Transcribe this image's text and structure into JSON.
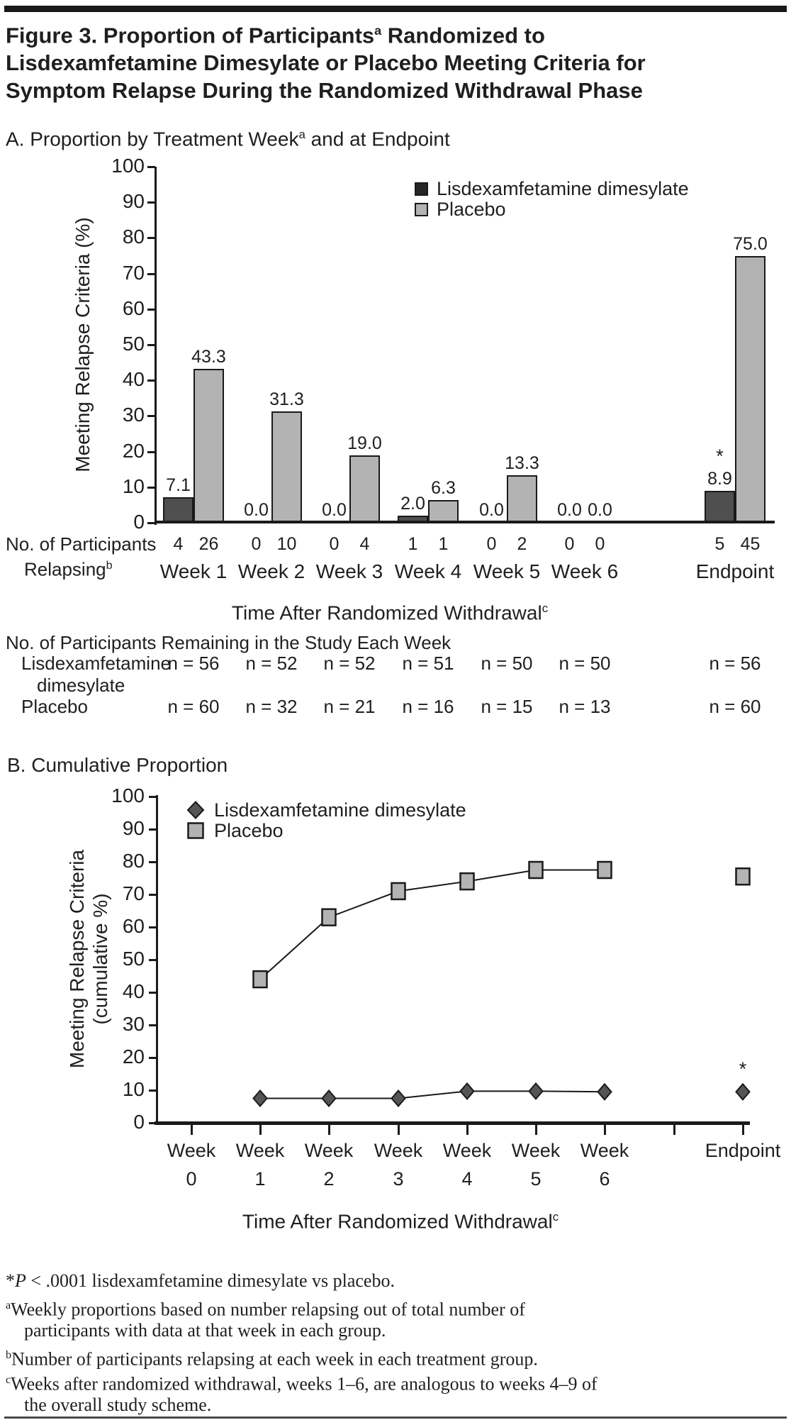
{
  "figure": {
    "title": {
      "line1_pre": "Figure 3. Proportion of Participants",
      "line1_sup": "a",
      "line1_post": " Randomized to",
      "line2": "Lisdexamfetamine Dimesylate or Placebo Meeting Criteria for",
      "line3": "Symptom Relapse During the Randomized Withdrawal Phase"
    }
  },
  "panel_a": {
    "heading_pre": "A. Proportion by Treatment Week",
    "heading_sup": "a",
    "heading_post": " and at Endpoint",
    "star": "*",
    "participants_relapsing": {
      "label_line1": "No. of Participants",
      "label_line2": "Relapsing",
      "label_sup": "b",
      "lisdexamfetamine": [
        4,
        0,
        0,
        1,
        0,
        0,
        5
      ],
      "placebo": [
        26,
        10,
        4,
        1,
        2,
        0,
        45
      ]
    },
    "participants_remaining": {
      "header": "No. of Participants Remaining in the Study Each Week",
      "rows": [
        {
          "label_line1": "Lisdexamfetamine",
          "label_line2": "dimesylate",
          "values": [
            "n = 56",
            "n = 52",
            "n = 52",
            "n = 51",
            "n = 50",
            "n = 50",
            "n = 56"
          ]
        },
        {
          "label_line1": "Placebo",
          "label_line2": "",
          "values": [
            "n = 60",
            "n = 32",
            "n = 21",
            "n = 16",
            "n = 15",
            "n = 13",
            "n = 60"
          ]
        }
      ]
    }
  },
  "panel_b": {
    "heading": "B. Cumulative Proportion",
    "star": "*"
  },
  "chart_data": [
    {
      "type": "bar",
      "panel": "A",
      "title": "A. Proportion by Treatment Week and at Endpoint",
      "categories": [
        "Week 1",
        "Week 2",
        "Week 3",
        "Week 4",
        "Week 5",
        "Week 6",
        "Endpoint"
      ],
      "series": [
        {
          "name": "Lisdexamfetamine dimesylate",
          "color": "#4f4f4f",
          "legend_color": "#262626",
          "values": [
            7.1,
            0.0,
            0.0,
            2.0,
            0.0,
            0.0,
            8.9
          ]
        },
        {
          "name": "Placebo",
          "color": "#b3b3b3",
          "legend_color": "#b3b3b3",
          "values": [
            43.3,
            31.3,
            19.0,
            6.3,
            13.3,
            0.0,
            75.0
          ]
        }
      ],
      "ylabel": "Meeting Relapse Criteria (%)",
      "xlabel_pre": "Time After Randomized Withdrawal",
      "xlabel_sup": "c",
      "ylim": [
        0,
        100
      ],
      "ytick_step": 10,
      "legend_position": "upper-center-right",
      "annotation": {
        "text": "*",
        "series": 0,
        "category": "Endpoint"
      }
    },
    {
      "type": "line",
      "panel": "B",
      "title": "B. Cumulative Proportion",
      "categories": [
        "Week 0",
        "Week 1",
        "Week 2",
        "Week 3",
        "Week 4",
        "Week 5",
        "Week 6",
        "",
        "Endpoint"
      ],
      "series": [
        {
          "name": "Lisdexamfetamine dimesylate",
          "marker": "diamond",
          "color": "#555555",
          "week_values": [
            7.5,
            7.5,
            7.5,
            9.7,
            9.7,
            9.5
          ],
          "endpoint_value": 9.5
        },
        {
          "name": "Placebo",
          "marker": "square",
          "color": "#b3b3b3",
          "week_values": [
            44,
            63,
            71,
            74,
            77.5,
            77.5
          ],
          "endpoint_value": 75.5
        }
      ],
      "ylabel_line1": "Meeting Relapse Criteria",
      "ylabel_line2": "(cumulative %)",
      "xlabel_pre": "Time After Randomized Withdrawal",
      "xlabel_sup": "c",
      "ylim": [
        0,
        100
      ],
      "ytick_step": 10,
      "legend_position": "upper-left",
      "annotation": {
        "text": "*",
        "series": 0,
        "category": "Endpoint"
      }
    }
  ],
  "footnotes": {
    "lines": [
      {
        "star": "*",
        "italic": "P",
        "text": " < .0001 lisdexamfetamine dimesylate vs placebo."
      },
      {
        "sup": "a",
        "text": "Weekly proportions based on number relapsing out of total number of"
      },
      {
        "indent": true,
        "text": "participants with data at that week in each group."
      },
      {
        "sup": "b",
        "text": "Number of participants relapsing at each week in each treatment group."
      },
      {
        "sup": "c",
        "text": "Weeks after randomized withdrawal, weeks 1–6, are analogous to weeks 4–9 of"
      },
      {
        "indent": true,
        "text": "the overall study scheme."
      }
    ]
  },
  "colors": {
    "ink": "#1f1f1f",
    "bar_border": "#1a1a1a",
    "line": "#1a1a1a",
    "top_bar": "#191919",
    "bottom_rule": "#4a4a4a"
  }
}
